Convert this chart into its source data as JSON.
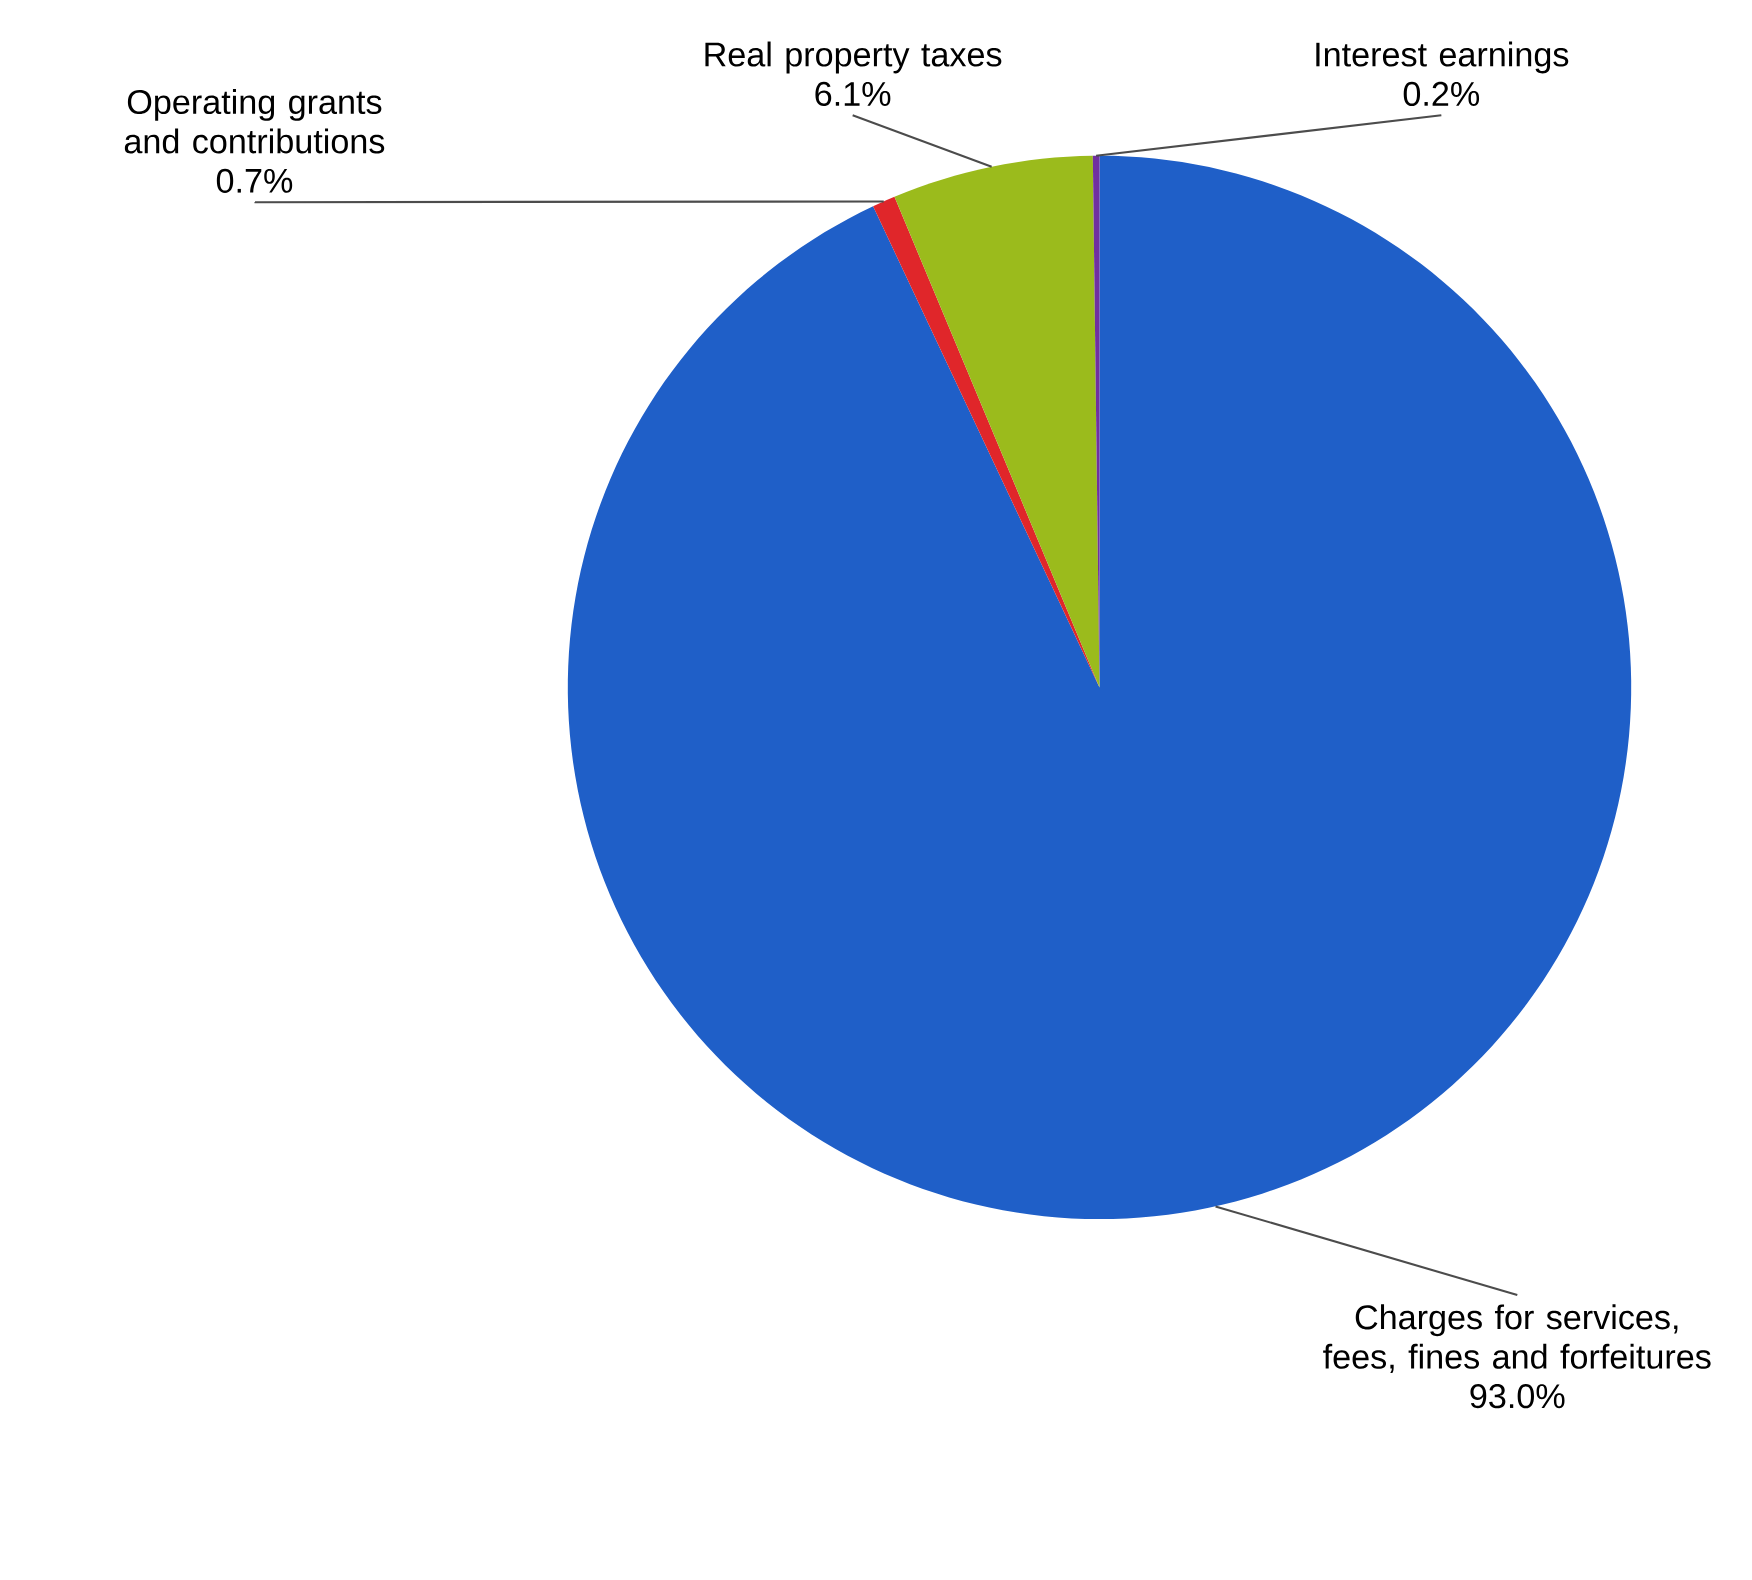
{
  "chart_data": {
    "type": "pie",
    "categories": [
      "Charges for services, fees, fines and forfeitures",
      "Operating grants and contributions",
      "Real property taxes",
      "Interest earnings"
    ],
    "values": [
      93.0,
      0.7,
      6.1,
      0.2
    ],
    "value_labels": [
      "93.0%",
      "0.7%",
      "6.1%",
      "0.2%"
    ],
    "colors": [
      "#1f5fc8",
      "#e0262a",
      "#9bbb1c",
      "#7030a0"
    ]
  }
}
